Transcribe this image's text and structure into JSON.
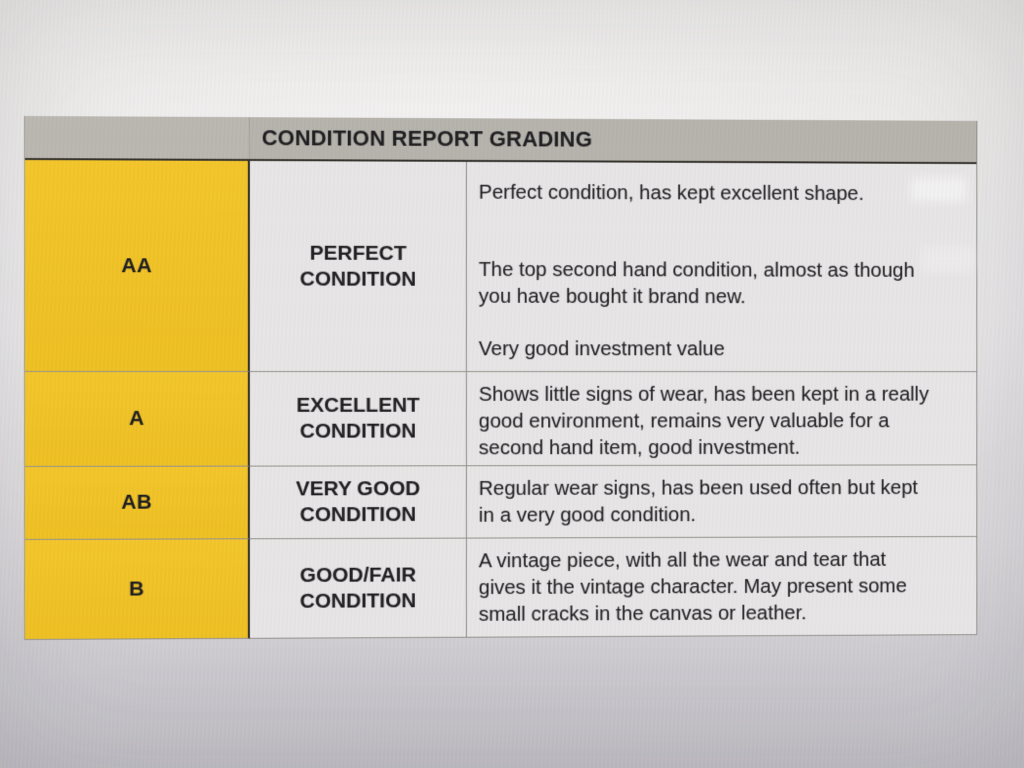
{
  "header": {
    "title": "CONDITION REPORT GRADING"
  },
  "colors": {
    "grade_yellow": "#f1c428",
    "header_gray": "#b7b3ad",
    "cell_background": "#e7e5e6",
    "paper_top": "#e9e7e5",
    "paper_bottom": "#c2c0c6",
    "text": "#1f1e20",
    "dark_border": "#2b2823",
    "light_border": "#96928d"
  },
  "grades": [
    {
      "code": "AA",
      "label": "PERFECT CONDITION",
      "paragraphs": [
        {
          "lines": [
            "Perfect condition, has kept excellent shape."
          ]
        },
        {
          "lines": [
            "The top second hand condition, almost as though",
            "you have bought it brand new."
          ]
        },
        {
          "lines": [
            "Very good investment value"
          ]
        }
      ]
    },
    {
      "code": "A",
      "label": "EXCELLENT CONDITION",
      "paragraphs": [
        {
          "lines": [
            "Shows little signs of wear, has been kept in a really",
            "good environment, remains very valuable for a",
            "second hand item, good investment."
          ]
        }
      ]
    },
    {
      "code": "AB",
      "label": "VERY GOOD CONDITION",
      "paragraphs": [
        {
          "lines": [
            "Regular wear signs, has been used often but kept",
            "in a very good condition."
          ]
        }
      ]
    },
    {
      "code": "B",
      "label": "GOOD/FAIR CONDITION",
      "paragraphs": [
        {
          "lines": [
            "A vintage piece, with all the wear and tear that",
            "gives it the vintage character. May present some",
            "small cracks in the canvas or leather."
          ]
        }
      ]
    }
  ]
}
